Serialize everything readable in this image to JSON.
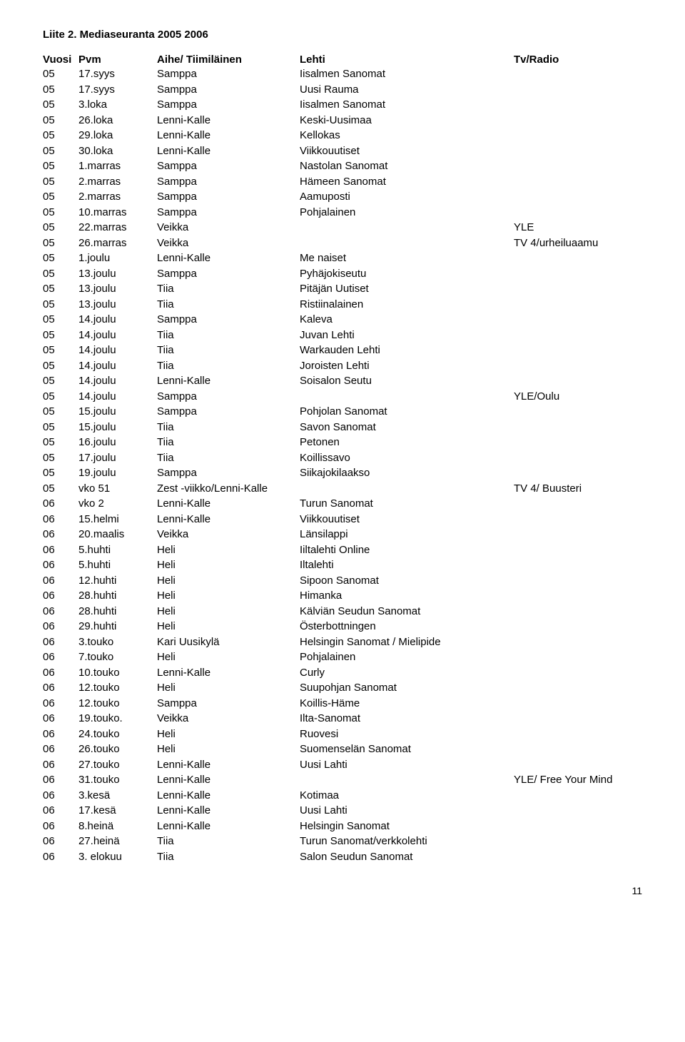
{
  "title": "Liite 2. Mediaseuranta 2005 2006",
  "headers": {
    "vuosi": "Vuosi",
    "pvm": "Pvm",
    "aihe": "Aihe/ Tiimiläinen",
    "lehti": "Lehti",
    "tv": "Tv/Radio"
  },
  "rows": [
    {
      "vuosi": "05",
      "pvm": "17.syys",
      "aihe": "Samppa",
      "lehti": "Iisalmen Sanomat",
      "tv": ""
    },
    {
      "vuosi": "05",
      "pvm": "17.syys",
      "aihe": "Samppa",
      "lehti": "Uusi Rauma",
      "tv": ""
    },
    {
      "vuosi": "05",
      "pvm": "3.loka",
      "aihe": "Samppa",
      "lehti": "Iisalmen Sanomat",
      "tv": ""
    },
    {
      "vuosi": "05",
      "pvm": "26.loka",
      "aihe": "Lenni-Kalle",
      "lehti": "Keski-Uusimaa",
      "tv": ""
    },
    {
      "vuosi": "05",
      "pvm": "29.loka",
      "aihe": "Lenni-Kalle",
      "lehti": "Kellokas",
      "tv": ""
    },
    {
      "vuosi": "05",
      "pvm": "30.loka",
      "aihe": "Lenni-Kalle",
      "lehti": "Viikkouutiset",
      "tv": ""
    },
    {
      "vuosi": "05",
      "pvm": "1.marras",
      "aihe": "Samppa",
      "lehti": "Nastolan Sanomat",
      "tv": ""
    },
    {
      "vuosi": "05",
      "pvm": "2.marras",
      "aihe": "Samppa",
      "lehti": "Hämeen Sanomat",
      "tv": ""
    },
    {
      "vuosi": "05",
      "pvm": "2.marras",
      "aihe": "Samppa",
      "lehti": "Aamuposti",
      "tv": ""
    },
    {
      "vuosi": "05",
      "pvm": "10.marras",
      "aihe": "Samppa",
      "lehti": "Pohjalainen",
      "tv": ""
    },
    {
      "vuosi": "05",
      "pvm": "22.marras",
      "aihe": "Veikka",
      "lehti": "",
      "tv": "YLE"
    },
    {
      "vuosi": "05",
      "pvm": "26.marras",
      "aihe": "Veikka",
      "lehti": "",
      "tv": "TV 4/urheiluaamu"
    },
    {
      "vuosi": "05",
      "pvm": "1.joulu",
      "aihe": "Lenni-Kalle",
      "lehti": "Me naiset",
      "tv": ""
    },
    {
      "vuosi": "05",
      "pvm": "13.joulu",
      "aihe": "Samppa",
      "lehti": "Pyhäjokiseutu",
      "tv": ""
    },
    {
      "vuosi": "05",
      "pvm": "13.joulu",
      "aihe": "Tiia",
      "lehti": "Pitäjän Uutiset",
      "tv": ""
    },
    {
      "vuosi": "05",
      "pvm": "13.joulu",
      "aihe": "Tiia",
      "lehti": "Ristiinalainen",
      "tv": ""
    },
    {
      "vuosi": "05",
      "pvm": "14.joulu",
      "aihe": "Samppa",
      "lehti": "Kaleva",
      "tv": ""
    },
    {
      "vuosi": "05",
      "pvm": "14.joulu",
      "aihe": "Tiia",
      "lehti": "Juvan Lehti",
      "tv": ""
    },
    {
      "vuosi": "05",
      "pvm": "14.joulu",
      "aihe": "Tiia",
      "lehti": "Warkauden Lehti",
      "tv": ""
    },
    {
      "vuosi": "05",
      "pvm": "14.joulu",
      "aihe": "Tiia",
      "lehti": "Joroisten Lehti",
      "tv": ""
    },
    {
      "vuosi": "05",
      "pvm": "14.joulu",
      "aihe": "Lenni-Kalle",
      "lehti": "Soisalon Seutu",
      "tv": ""
    },
    {
      "vuosi": "05",
      "pvm": "14.joulu",
      "aihe": "Samppa",
      "lehti": "",
      "tv": "YLE/Oulu"
    },
    {
      "vuosi": "05",
      "pvm": "15.joulu",
      "aihe": "Samppa",
      "lehti": "Pohjolan Sanomat",
      "tv": ""
    },
    {
      "vuosi": "05",
      "pvm": "15.joulu",
      "aihe": "Tiia",
      "lehti": "Savon Sanomat",
      "tv": ""
    },
    {
      "vuosi": "05",
      "pvm": "16.joulu",
      "aihe": "Tiia",
      "lehti": "Petonen",
      "tv": ""
    },
    {
      "vuosi": "05",
      "pvm": "17.joulu",
      "aihe": "Tiia",
      "lehti": "Koillissavo",
      "tv": ""
    },
    {
      "vuosi": "05",
      "pvm": "19.joulu",
      "aihe": "Samppa",
      "lehti": "Siikajokilaakso",
      "tv": ""
    },
    {
      "vuosi": "05",
      "pvm": "vko 51",
      "aihe": "Zest -viikko/Lenni-Kalle",
      "lehti": "",
      "tv": "TV 4/ Buusteri"
    },
    {
      "vuosi": "06",
      "pvm": "vko 2",
      "aihe": "Lenni-Kalle",
      "lehti": "Turun Sanomat",
      "tv": ""
    },
    {
      "vuosi": "06",
      "pvm": "15.helmi",
      "aihe": "Lenni-Kalle",
      "lehti": "Viikkouutiset",
      "tv": ""
    },
    {
      "vuosi": "06",
      "pvm": "20.maalis",
      "aihe": "Veikka",
      "lehti": "Länsilappi",
      "tv": ""
    },
    {
      "vuosi": "06",
      "pvm": "5.huhti",
      "aihe": "Heli",
      "lehti": "Iiltalehti Online",
      "tv": ""
    },
    {
      "vuosi": "06",
      "pvm": "5.huhti",
      "aihe": "Heli",
      "lehti": "Iltalehti",
      "tv": ""
    },
    {
      "vuosi": "06",
      "pvm": "12.huhti",
      "aihe": "Heli",
      "lehti": "Sipoon Sanomat",
      "tv": ""
    },
    {
      "vuosi": "06",
      "pvm": "28.huhti",
      "aihe": "Heli",
      "lehti": "Himanka",
      "tv": ""
    },
    {
      "vuosi": "06",
      "pvm": "28.huhti",
      "aihe": "Heli",
      "lehti": "Kälviän Seudun Sanomat",
      "tv": ""
    },
    {
      "vuosi": "06",
      "pvm": "29.huhti",
      "aihe": "Heli",
      "lehti": "Österbottningen",
      "tv": ""
    },
    {
      "vuosi": "06",
      "pvm": "3.touko",
      "aihe": "Kari Uusikylä",
      "lehti": "Helsingin Sanomat / Mielipide",
      "tv": ""
    },
    {
      "vuosi": "06",
      "pvm": "7.touko",
      "aihe": "Heli",
      "lehti": "Pohjalainen",
      "tv": ""
    },
    {
      "vuosi": "06",
      "pvm": "10.touko",
      "aihe": "Lenni-Kalle",
      "lehti": "Curly",
      "tv": ""
    },
    {
      "vuosi": "06",
      "pvm": "12.touko",
      "aihe": "Heli",
      "lehti": "Suupohjan Sanomat",
      "tv": ""
    },
    {
      "vuosi": "06",
      "pvm": "12.touko",
      "aihe": "Samppa",
      "lehti": "Koillis-Häme",
      "tv": ""
    },
    {
      "vuosi": "06",
      "pvm": "19.touko.",
      "aihe": "Veikka",
      "lehti": "Ilta-Sanomat",
      "tv": ""
    },
    {
      "vuosi": "06",
      "pvm": "24.touko",
      "aihe": "Heli",
      "lehti": "Ruovesi",
      "tv": ""
    },
    {
      "vuosi": "06",
      "pvm": "26.touko",
      "aihe": "Heli",
      "lehti": "Suomenselän Sanomat",
      "tv": ""
    },
    {
      "vuosi": "06",
      "pvm": "27.touko",
      "aihe": "Lenni-Kalle",
      "lehti": "Uusi Lahti",
      "tv": ""
    },
    {
      "vuosi": "06",
      "pvm": "31.touko",
      "aihe": "Lenni-Kalle",
      "lehti": "",
      "tv": "YLE/ Free Your Mind"
    },
    {
      "vuosi": "06",
      "pvm": "3.kesä",
      "aihe": "Lenni-Kalle",
      "lehti": "Kotimaa",
      "tv": ""
    },
    {
      "vuosi": "06",
      "pvm": "17.kesä",
      "aihe": "Lenni-Kalle",
      "lehti": "Uusi Lahti",
      "tv": ""
    },
    {
      "vuosi": "06",
      "pvm": "8.heinä",
      "aihe": "Lenni-Kalle",
      "lehti": "Helsingin Sanomat",
      "tv": ""
    },
    {
      "vuosi": "06",
      "pvm": "27.heinä",
      "aihe": "Tiia",
      "lehti": "Turun Sanomat/verkkolehti",
      "tv": ""
    },
    {
      "vuosi": "06",
      "pvm": "3. elokuu",
      "aihe": "Tiia",
      "lehti": "Salon Seudun Sanomat",
      "tv": ""
    }
  ],
  "pageNumber": "11"
}
